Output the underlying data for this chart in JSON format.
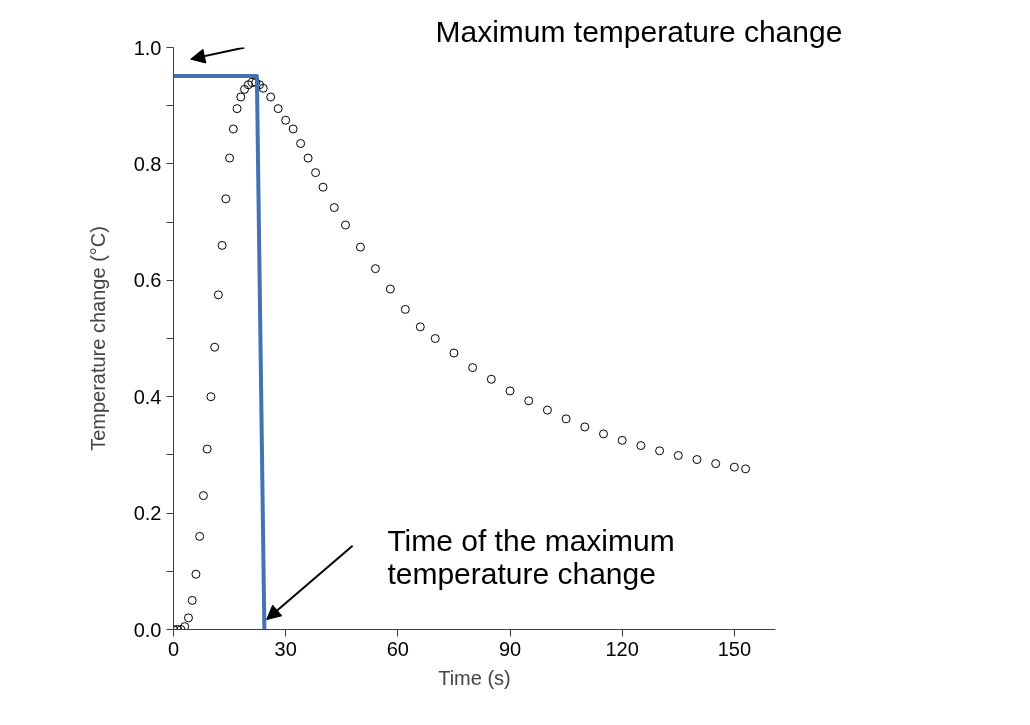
{
  "chart_data": {
    "type": "scatter",
    "xlabel": "Time (s)",
    "ylabel": "Temperature change (°C)",
    "xlim": [
      0,
      161
    ],
    "ylim": [
      0,
      1.0
    ],
    "xticks": [
      0,
      30,
      60,
      90,
      120,
      150
    ],
    "yticks": [
      {
        "value": 0,
        "label": "0.0"
      },
      {
        "value": 0.1,
        "label": null
      },
      0.2,
      {
        "value": 0.3,
        "label": null
      },
      0.4,
      {
        "value": 0.5,
        "label": null
      },
      0.6,
      {
        "value": 0.7,
        "label": null
      },
      0.8,
      {
        "value": 0.9,
        "label": null
      },
      {
        "value": 1.0,
        "label": "1.0"
      }
    ],
    "grid": false,
    "marker": "circle",
    "series": [
      {
        "color": "#000000",
        "x": [
          0,
          1,
          2,
          3,
          4,
          5,
          6,
          7,
          8,
          9,
          10,
          11,
          12,
          13,
          14,
          15,
          16,
          17,
          18,
          19,
          20,
          21,
          22,
          23,
          24,
          26,
          28,
          30,
          32,
          34,
          36,
          38,
          40,
          43,
          46,
          50,
          54,
          58,
          62,
          66,
          70,
          75,
          80,
          85,
          90,
          95,
          100,
          105,
          110,
          115,
          120,
          125,
          130,
          135,
          140,
          145,
          150,
          153
        ],
        "values": [
          0,
          0,
          0,
          0.005,
          0.02,
          0.05,
          0.095,
          0.16,
          0.23,
          0.31,
          0.4,
          0.485,
          0.575,
          0.66,
          0.74,
          0.81,
          0.86,
          0.895,
          0.915,
          0.928,
          0.936,
          0.94,
          0.94,
          0.936,
          0.93,
          0.915,
          0.895,
          0.875,
          0.86,
          0.835,
          0.81,
          0.785,
          0.76,
          0.725,
          0.695,
          0.657,
          0.62,
          0.585,
          0.55,
          0.52,
          0.5,
          0.475,
          0.45,
          0.43,
          0.41,
          0.393,
          0.377,
          0.362,
          0.348,
          0.336,
          0.325,
          0.316,
          0.307,
          0.299,
          0.292,
          0.285,
          0.279,
          0.276
        ]
      },
      {
        "type": "line",
        "color": "#4472b4",
        "line_style": "solid",
        "marker": "none",
        "x": [
          0,
          22.3,
          24.3
        ],
        "values": [
          0.951,
          0.951,
          0
        ]
      }
    ],
    "annotations": [
      "Maximum temperature change",
      {
        "text": "Time of the maximum\ntemperature change",
        "x": 24.9,
        "y": 0.017
      }
    ]
  }
}
